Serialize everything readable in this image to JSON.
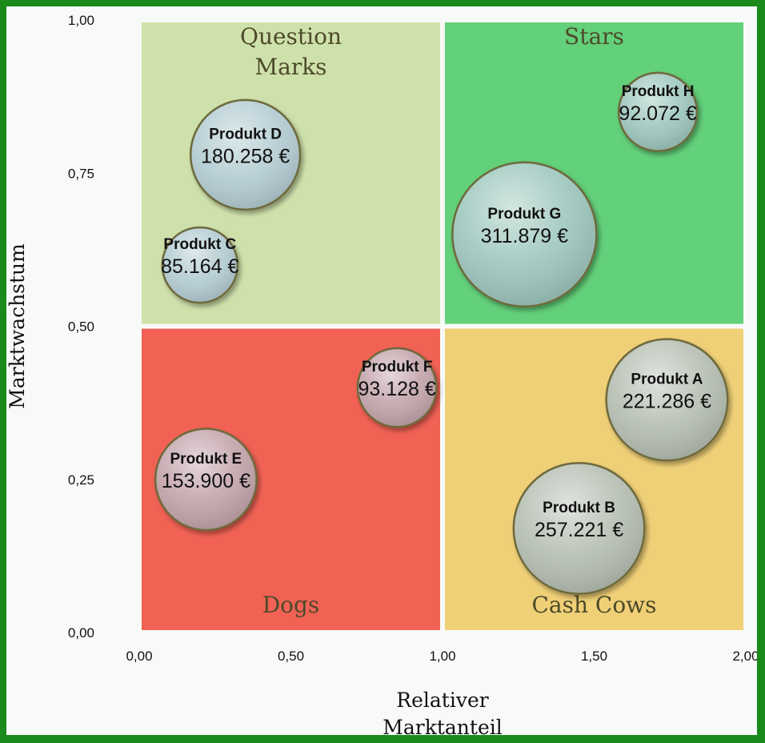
{
  "chart_data": {
    "type": "bubble",
    "title": "",
    "xlabel_lines": [
      "Relativer",
      "Marktanteil"
    ],
    "ylabel": "Marktwachstum",
    "xlim": [
      0,
      2
    ],
    "ylim": [
      0,
      1
    ],
    "x_ticks": [
      "0,00",
      "0,50",
      "1,00",
      "1,50",
      "2,00"
    ],
    "y_ticks": [
      "0,00",
      "0,25",
      "0,50",
      "0,75",
      "1,00"
    ],
    "quadrants": [
      {
        "key": "question",
        "label_lines": [
          "Question",
          "Marks"
        ],
        "x": [
          0,
          1
        ],
        "y": [
          0.5,
          1
        ],
        "color": "#cfe1ab",
        "label_anchor": "top"
      },
      {
        "key": "stars",
        "label_lines": [
          "Stars"
        ],
        "x": [
          1,
          2
        ],
        "y": [
          0.5,
          1
        ],
        "color": "#63d07a",
        "label_anchor": "top"
      },
      {
        "key": "dogs",
        "label_lines": [
          "Dogs"
        ],
        "x": [
          0,
          1
        ],
        "y": [
          0,
          0.5
        ],
        "color": "#f16255",
        "label_anchor": "bottom"
      },
      {
        "key": "cows",
        "label_lines": [
          "Cash Cows"
        ],
        "x": [
          1,
          2
        ],
        "y": [
          0,
          0.5
        ],
        "color": "#f0d077",
        "label_anchor": "bottom"
      }
    ],
    "bubbles": [
      {
        "name": "Produkt A",
        "value_label": "221.286 €",
        "x": 1.74,
        "y": 0.38,
        "size": 221286,
        "color": "#b7c0b4"
      },
      {
        "name": "Produkt B",
        "value_label": "257.221 €",
        "x": 1.45,
        "y": 0.17,
        "size": 257221,
        "color": "#b7c0b4"
      },
      {
        "name": "Produkt C",
        "value_label": "85.164 €",
        "x": 0.2,
        "y": 0.6,
        "size": 85164,
        "color": "#b4cdd3"
      },
      {
        "name": "Produkt D",
        "value_label": "180.258 €",
        "x": 0.35,
        "y": 0.78,
        "size": 180258,
        "color": "#b4cdd3"
      },
      {
        "name": "Produkt E",
        "value_label": "153.900 €",
        "x": 0.22,
        "y": 0.25,
        "size": 153900,
        "color": "#c4a6ad"
      },
      {
        "name": "Produkt F",
        "value_label": "93.128 €",
        "x": 0.85,
        "y": 0.4,
        "size": 93128,
        "color": "#c4a6ad"
      },
      {
        "name": "Produkt G",
        "value_label": "311.879 €",
        "x": 1.27,
        "y": 0.65,
        "size": 311879,
        "color": "#9fc8be"
      },
      {
        "name": "Produkt H",
        "value_label": "92.072 €",
        "x": 1.71,
        "y": 0.85,
        "size": 92072,
        "color": "#9fc8be"
      }
    ]
  }
}
